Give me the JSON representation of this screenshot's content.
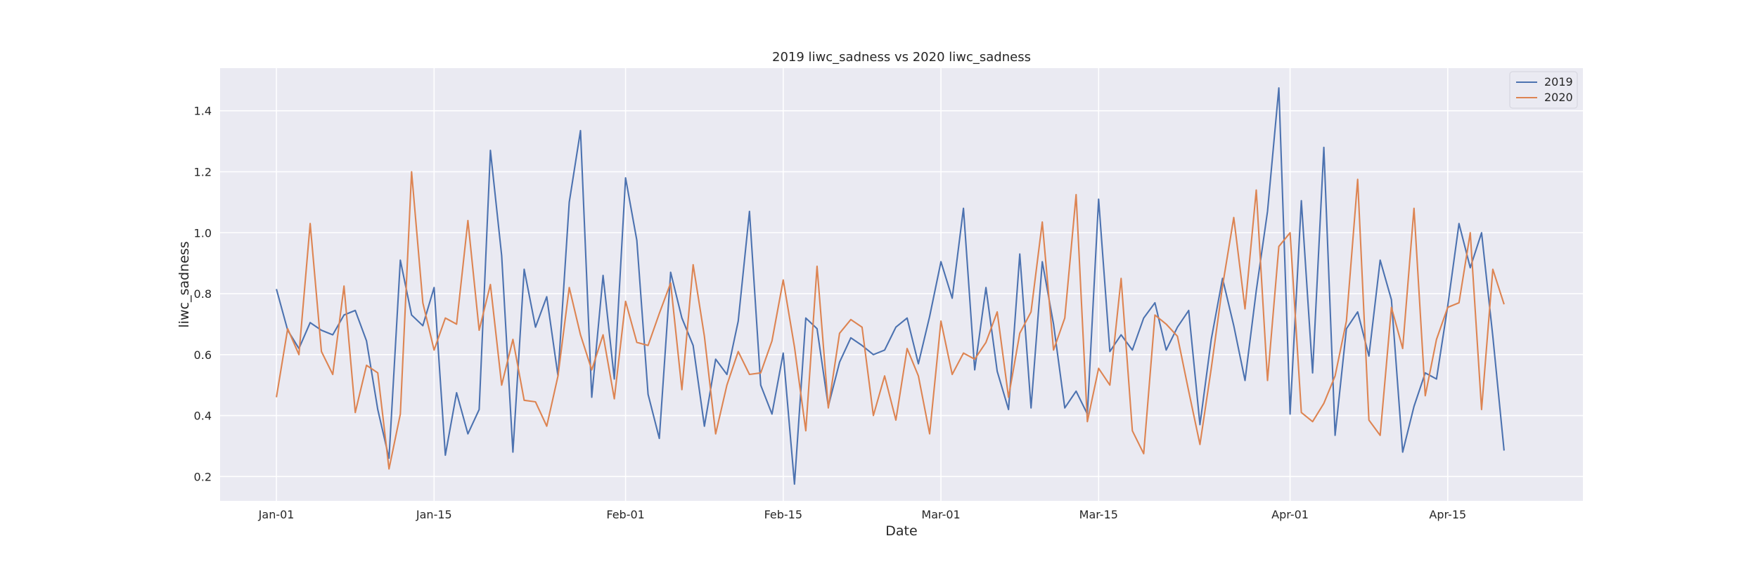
{
  "chart_data": {
    "type": "line",
    "title": "2019 liwc_sadness vs 2020 liwc_sadness",
    "xlabel": "Date",
    "ylabel": "liwc_sadness",
    "x_start": "Jan-01",
    "x_ticks": [
      {
        "label": "Jan-01",
        "date": "Jan-01"
      },
      {
        "label": "Jan-15",
        "date": "Jan-15"
      },
      {
        "label": "Feb-01",
        "date": "Feb-01"
      },
      {
        "label": "Feb-15",
        "date": "Feb-15"
      },
      {
        "label": "Mar-01",
        "date": "Mar-01"
      },
      {
        "label": "Mar-15",
        "date": "Mar-15"
      },
      {
        "label": "Apr-01",
        "date": "Apr-01"
      },
      {
        "label": "Apr-15",
        "date": "Apr-15"
      }
    ],
    "y_ticks": [
      0.2,
      0.4,
      0.6,
      0.8,
      1.0,
      1.2,
      1.4
    ],
    "xlim": [
      "Dec-27",
      "Apr-27"
    ],
    "ylim": [
      0.12,
      1.54
    ],
    "grid": true,
    "legend_position": "top-right",
    "background": "#eaeaf2",
    "series": [
      {
        "name": "2019",
        "color": "#4c72b0",
        "values": [
          0.815,
          0.68,
          0.62,
          0.705,
          0.68,
          0.665,
          0.73,
          0.745,
          0.645,
          0.42,
          0.26,
          0.91,
          0.73,
          0.695,
          0.82,
          0.27,
          0.475,
          0.34,
          0.42,
          1.27,
          0.925,
          0.28,
          0.88,
          0.69,
          0.79,
          0.53,
          1.1,
          1.335,
          0.46,
          0.86,
          0.52,
          1.18,
          0.975,
          0.47,
          0.325,
          0.87,
          0.72,
          0.63,
          0.365,
          0.585,
          0.535,
          0.71,
          1.07,
          0.5,
          0.405,
          0.605,
          0.175,
          0.72,
          0.685,
          0.43,
          0.575,
          0.655,
          0.63,
          0.6,
          0.615,
          0.69,
          0.72,
          0.57,
          0.725,
          0.905,
          0.785,
          1.08,
          0.55,
          0.82,
          0.545,
          0.42,
          0.93,
          0.425,
          0.905,
          0.7,
          0.425,
          0.48,
          0.405,
          1.11,
          0.61,
          0.665,
          0.615,
          0.72,
          0.77,
          0.615,
          0.69,
          0.745,
          0.37,
          0.65,
          0.85,
          0.695,
          0.515,
          0.81,
          1.07,
          1.475,
          0.405,
          1.105,
          0.54,
          1.28,
          0.335,
          0.685,
          0.74,
          0.595,
          0.91,
          0.78,
          0.28,
          0.43,
          0.54,
          0.52,
          0.76,
          1.03,
          0.885,
          1.0,
          0.66,
          0.285
        ]
      },
      {
        "name": "2020",
        "color": "#dd8452",
        "values": [
          0.46,
          0.685,
          0.6,
          1.03,
          0.61,
          0.535,
          0.825,
          0.41,
          0.565,
          0.54,
          0.225,
          0.405,
          1.2,
          0.77,
          0.615,
          0.72,
          0.7,
          1.04,
          0.68,
          0.83,
          0.5,
          0.65,
          0.45,
          0.445,
          0.365,
          0.53,
          0.82,
          0.665,
          0.55,
          0.665,
          0.455,
          0.775,
          0.64,
          0.63,
          0.735,
          0.835,
          0.485,
          0.895,
          0.66,
          0.34,
          0.5,
          0.61,
          0.535,
          0.54,
          0.645,
          0.845,
          0.625,
          0.35,
          0.89,
          0.425,
          0.67,
          0.715,
          0.69,
          0.4,
          0.53,
          0.385,
          0.62,
          0.53,
          0.34,
          0.71,
          0.535,
          0.605,
          0.585,
          0.64,
          0.74,
          0.46,
          0.67,
          0.74,
          1.035,
          0.615,
          0.72,
          1.125,
          0.38,
          0.555,
          0.5,
          0.85,
          0.35,
          0.275,
          0.73,
          0.7,
          0.66,
          0.48,
          0.305,
          0.555,
          0.825,
          1.05,
          0.75,
          1.14,
          0.515,
          0.955,
          1.0,
          0.41,
          0.38,
          0.44,
          0.53,
          0.71,
          1.175,
          0.385,
          0.335,
          0.755,
          0.62,
          1.08,
          0.465,
          0.65,
          0.755,
          0.77,
          1.0,
          0.42,
          0.88,
          0.765
        ]
      }
    ]
  }
}
